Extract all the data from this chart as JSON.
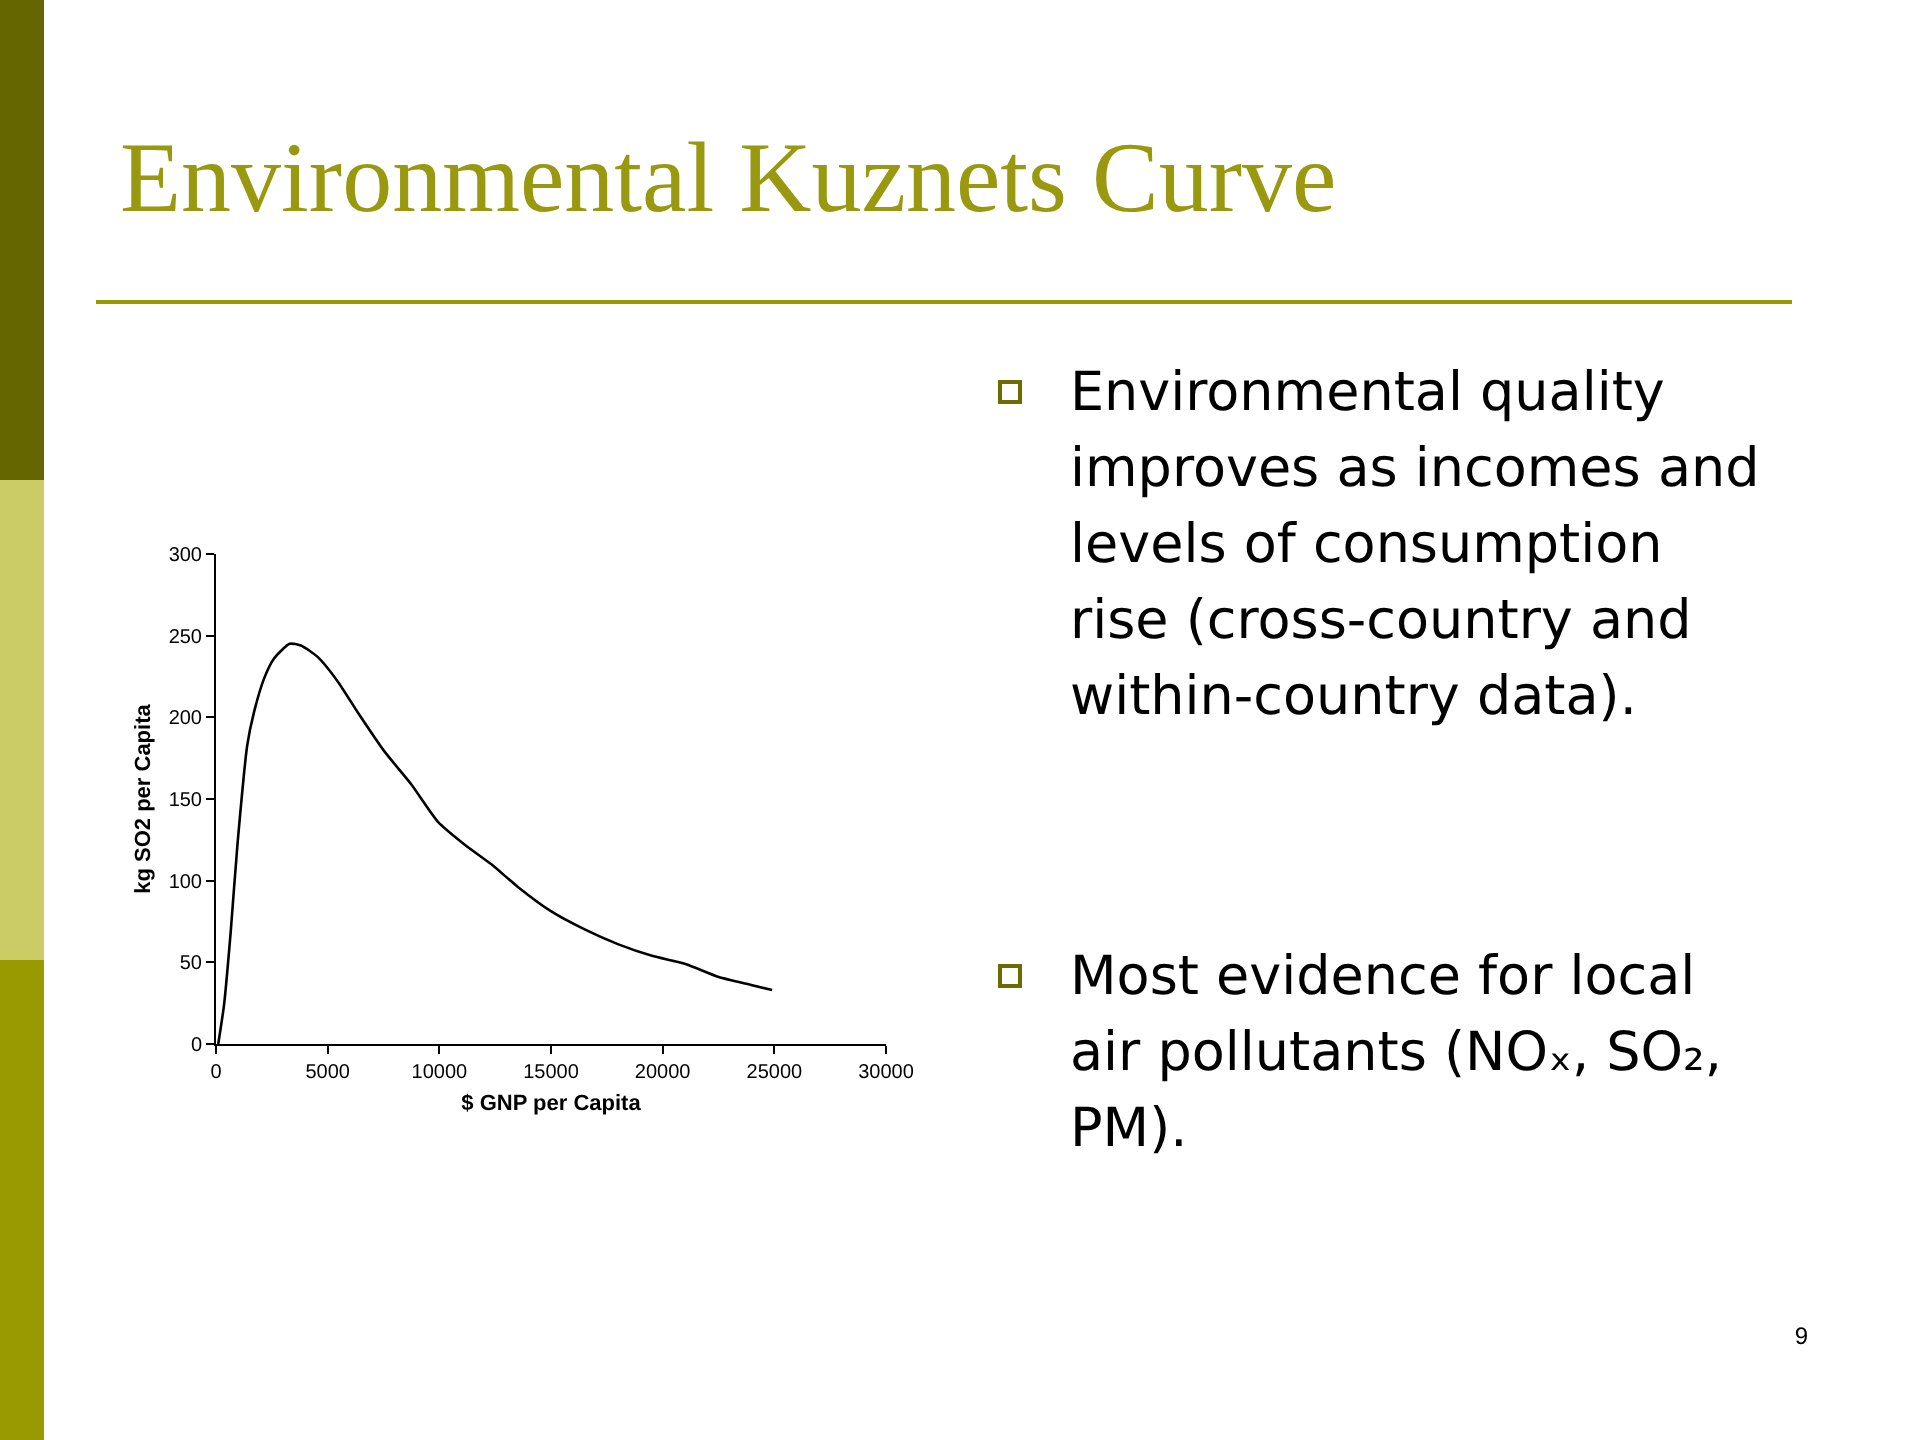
{
  "chart_data": {
    "type": "line",
    "title": "Environmental Kuznets Curve",
    "xlabel": "$ GNP per Capita",
    "ylabel": "kg SO2 per Capita",
    "series": [
      {
        "color": "#000000",
        "x": [
          100,
          360,
          660,
          960,
          1400,
          1700,
          2160,
          2600,
          3300,
          3800,
          4550,
          5450,
          6350,
          7550,
          8740,
          9940,
          11140,
          12330,
          13530,
          15030,
          16530,
          18020,
          19520,
          21020,
          22510,
          24010,
          24900
        ],
        "values": [
          0,
          24,
          69,
          122,
          183,
          203,
          224,
          236,
          245,
          244,
          237,
          222,
          203,
          179,
          159,
          136,
          122,
          110,
          96,
          81,
          70,
          61,
          54,
          49,
          41,
          36,
          33
        ]
      }
    ],
    "xlim": [
      0,
      30000
    ],
    "xticks": [
      0,
      5000,
      10000,
      15000,
      20000,
      25000,
      30000
    ],
    "ylim": [
      0,
      300
    ],
    "yticks": [
      0,
      50,
      100,
      150,
      200,
      250,
      300
    ],
    "grid": false,
    "marker": "none",
    "line_style": "solid",
    "annotations": [
      "Environmental quality improves as incomes and levels of consumption rise (cross-country and within-country data).",
      "Most evidence for local air pollutants (NOₓ, SO₂, PM).",
      "9"
    ]
  }
}
